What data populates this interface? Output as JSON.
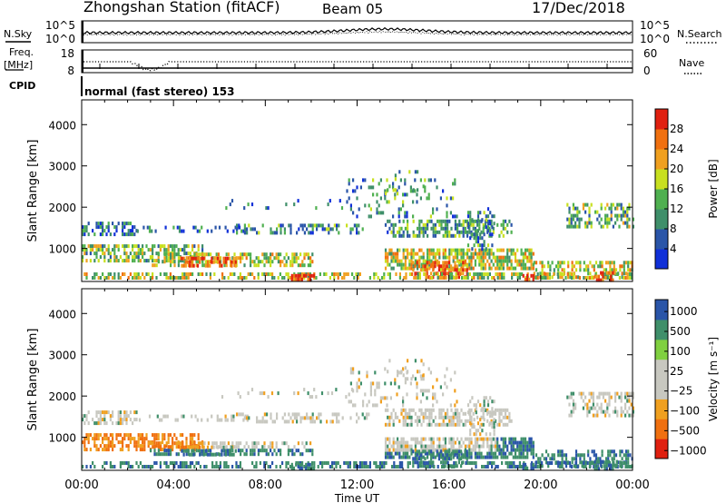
{
  "header": {
    "station": "Zhongshan Station (fitACF)",
    "beam": "Beam 05",
    "date": "17/Dec/2018"
  },
  "left_labels": {
    "nsky": "N.Sky",
    "freq": "Freq.",
    "mhz": "[MHz]",
    "cpid": "CPID"
  },
  "right_labels": {
    "nsearch": "N.Search",
    "nave": "Nave"
  },
  "mode_text": "normal (fast stereo) 153",
  "colors": {
    "power": [
      "#1030d8",
      "#2a55a8",
      "#3f8f6a",
      "#4fb050",
      "#c8e020",
      "#f0a020",
      "#f07010",
      "#e02010"
    ],
    "velocity": [
      "#e02010",
      "#f07010",
      "#f0a020",
      "#c8c8c0",
      "#c8c8c0",
      "#80d040",
      "#3f8f6a",
      "#2a55a8"
    ]
  },
  "chart_data": [
    {
      "type": "line",
      "name": "noise",
      "yticks_left": [
        "10^5",
        "10^0"
      ],
      "yticks_right": [
        "10^5",
        "10^0"
      ]
    },
    {
      "type": "line",
      "name": "frequency-nave",
      "ylim_left": [
        8,
        18
      ],
      "yticks_left": [
        "18",
        "8"
      ],
      "ylim_right": [
        0,
        60
      ],
      "yticks_right": [
        "60",
        "0"
      ]
    },
    {
      "type": "heatmap",
      "name": "power",
      "ylabel": "Slant Range [km]",
      "ylim": [
        200,
        4600
      ],
      "yticks": [
        "1000",
        "2000",
        "3000",
        "4000"
      ],
      "colorbar_label": "Power [dB]",
      "colorbar_ticks": [
        "4",
        "8",
        "12",
        "16",
        "20",
        "24",
        "28"
      ],
      "colorbar_range": [
        0,
        32
      ]
    },
    {
      "type": "heatmap",
      "name": "velocity",
      "ylabel": "Slant Range [km]",
      "xlabel": "Time UT",
      "ylim": [
        200,
        4600
      ],
      "yticks": [
        "1000",
        "2000",
        "3000",
        "4000"
      ],
      "xticks": [
        "00:00",
        "04:00",
        "08:00",
        "12:00",
        "16:00",
        "20:00",
        "00:00"
      ],
      "colorbar_label": "Velocity [m s⁻¹]",
      "colorbar_ticks": [
        "1000",
        "500",
        "100",
        "25",
        "−25",
        "−100",
        "−500",
        "−1000"
      ]
    }
  ]
}
